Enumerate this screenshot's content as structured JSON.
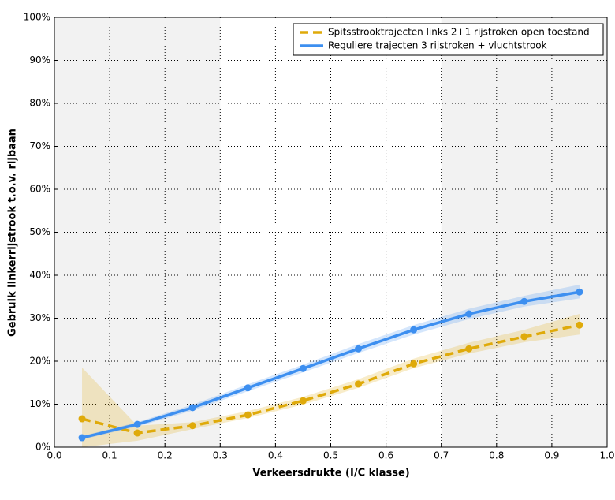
{
  "chart_data": {
    "type": "line",
    "x_label": "Verkeersdrukte (I/C klasse)",
    "y_label": "Gebruik linkerrijstrook t.o.v. rijbaan",
    "x": [
      0.05,
      0.15,
      0.25,
      0.35,
      0.45,
      0.55,
      0.65,
      0.75,
      0.85,
      0.95
    ],
    "series": [
      {
        "name": "Spitsstrooktrajecten links 2+1 rijstroken open toestand",
        "color": "#dfaa0a",
        "dashed": true,
        "values": [
          6.6,
          3.3,
          5.0,
          7.5,
          10.8,
          14.7,
          19.4,
          22.9,
          25.7,
          28.4
        ],
        "lower": [
          0,
          1.5,
          4.2,
          6.8,
          9.9,
          13.8,
          18.4,
          21.8,
          24.4,
          26.2
        ],
        "upper": [
          18.5,
          5.0,
          5.8,
          8.4,
          11.7,
          15.8,
          20.6,
          24.3,
          27.3,
          31.0
        ]
      },
      {
        "name": "Reguliere trajecten 3 rijstroken + vluchtstrook",
        "color": "#3d8ff0",
        "dashed": false,
        "values": [
          2.2,
          5.3,
          9.2,
          13.8,
          18.3,
          22.9,
          27.3,
          31.0,
          33.9,
          36.1
        ],
        "lower": [
          1.8,
          4.8,
          8.5,
          13.0,
          17.4,
          21.9,
          26.2,
          29.8,
          32.7,
          34.6
        ],
        "upper": [
          2.6,
          5.8,
          9.9,
          14.6,
          19.2,
          24.0,
          28.4,
          32.2,
          35.2,
          37.8
        ]
      }
    ],
    "shaded_spans": [
      [
        0,
        0.3
      ],
      [
        0.7,
        1.0
      ]
    ],
    "xlim": [
      0,
      1
    ],
    "xticks": [
      {
        "value": 0,
        "label": "0.0"
      },
      0.1,
      0.2,
      0.3,
      0.4,
      0.5,
      0.6,
      0.7,
      0.8,
      0.9,
      {
        "value": 1,
        "label": "1.0"
      }
    ],
    "ylim": [
      0,
      100
    ],
    "yticks": [
      {
        "value": 0,
        "label": "0%"
      },
      {
        "value": 10,
        "label": "10%"
      },
      {
        "value": 20,
        "label": "20%"
      },
      {
        "value": 30,
        "label": "30%"
      },
      {
        "value": 40,
        "label": "40%"
      },
      {
        "value": 50,
        "label": "50%"
      },
      {
        "value": 60,
        "label": "60%"
      },
      {
        "value": 70,
        "label": "70%"
      },
      {
        "value": 80,
        "label": "80%"
      },
      {
        "value": 90,
        "label": "90%"
      },
      {
        "value": 100,
        "label": "100%"
      }
    ],
    "grid": true,
    "legend": "upper right"
  }
}
